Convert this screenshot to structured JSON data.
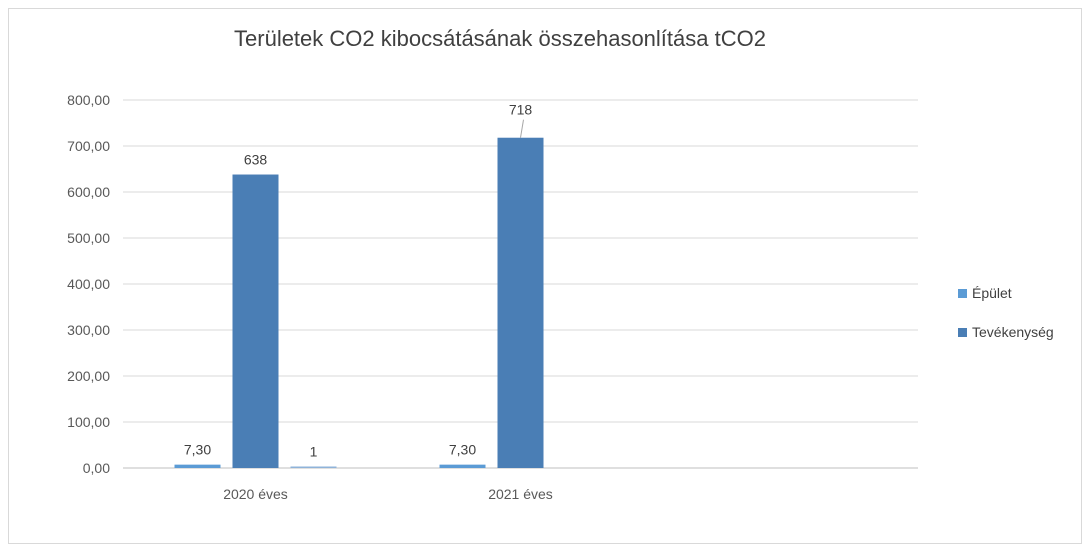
{
  "chart_data": {
    "type": "bar",
    "title": "Területek CO2 kibocsátásának összehasonlítása tCO2",
    "categories": [
      "2020 éves",
      "2021 éves"
    ],
    "series": [
      {
        "name": "Épület",
        "color": "#5b9bd5",
        "values": [
          7.3,
          7.3
        ],
        "labels": [
          "7,30",
          "7,30"
        ]
      },
      {
        "name": "Tevékenység",
        "color": "#4a7eb5",
        "values": [
          638,
          718
        ],
        "labels": [
          "638",
          "718"
        ]
      },
      {
        "name": "",
        "color": "#8fb3d9",
        "values": [
          1,
          null
        ],
        "labels": [
          "1",
          ""
        ]
      }
    ],
    "ylim": [
      0,
      800
    ],
    "yticks": [
      0,
      100,
      200,
      300,
      400,
      500,
      600,
      700,
      800
    ],
    "ytick_labels": [
      "0,00",
      "100,00",
      "200,00",
      "300,00",
      "400,00",
      "500,00",
      "600,00",
      "700,00",
      "800,00"
    ],
    "grid": true,
    "legend_position": "right"
  }
}
